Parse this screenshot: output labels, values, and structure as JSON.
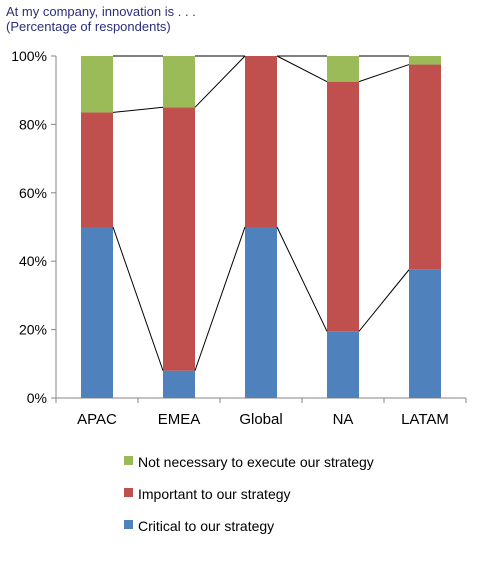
{
  "chart_data": {
    "type": "bar",
    "stacked": true,
    "title": "At my company, innovation is  . . .",
    "subtitle": "(Percentage of respondents)",
    "categories": [
      "APAC",
      "EMEA",
      "Global",
      "NA",
      "LATAM"
    ],
    "series": [
      {
        "name": "Critical to our strategy",
        "color": "#4f81bd",
        "values": [
          50,
          8,
          50,
          19.5,
          37.5
        ]
      },
      {
        "name": "Important to our strategy",
        "color": "#c0504d",
        "values": [
          33.5,
          77,
          50,
          73,
          60
        ]
      },
      {
        "name": "Not necessary to execute our strategy",
        "color": "#9bbb59",
        "values": [
          16.5,
          15,
          0,
          7.5,
          2.5
        ]
      }
    ],
    "ylim": [
      0,
      100
    ],
    "yticks": [
      "0%",
      "20%",
      "40%",
      "60%",
      "80%",
      "100%"
    ],
    "legend_position": "bottom",
    "grid": false,
    "series_lines": true
  },
  "legend": [
    {
      "label": "Not necessary to execute our strategy",
      "color": "#9bbb59"
    },
    {
      "label": "Important to our strategy",
      "color": "#c0504d"
    },
    {
      "label": "Critical to our strategy",
      "color": "#4f81bd"
    }
  ]
}
